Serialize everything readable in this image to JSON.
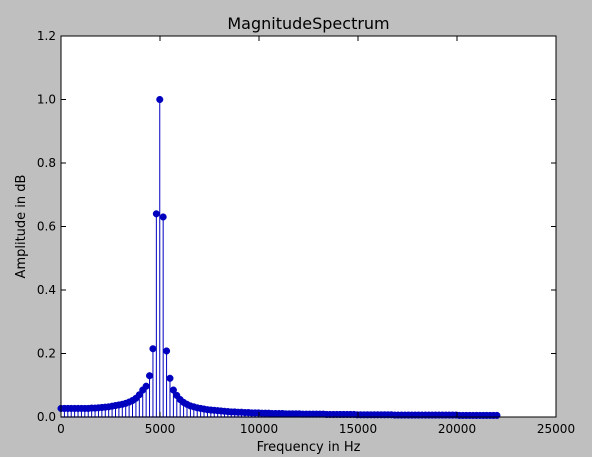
{
  "chart_data": {
    "type": "stem",
    "title": "MagnitudeSpectrum",
    "xlabel": "Frequency in Hz",
    "ylabel": "Amplitude in dB",
    "xlim": [
      0,
      25000
    ],
    "ylim": [
      0,
      1.2
    ],
    "xticks": [
      0,
      5000,
      10000,
      15000,
      20000,
      25000
    ],
    "yticks": [
      0.0,
      0.2,
      0.4,
      0.6,
      0.8,
      1.0,
      1.2
    ],
    "xtick_labels": [
      "0",
      "5000",
      "10000",
      "15000",
      "20000",
      "25000"
    ],
    "ytick_labels": [
      "0.0",
      "0.2",
      "0.4",
      "0.6",
      "0.8",
      "1.0",
      "1.2"
    ],
    "grid": false,
    "series": [
      {
        "color": "#0000bf",
        "step_hz": 172,
        "x_start": 0,
        "values": [
          0.027,
          0.027,
          0.027,
          0.027,
          0.027,
          0.027,
          0.027,
          0.027,
          0.027,
          0.028,
          0.028,
          0.029,
          0.03,
          0.031,
          0.032,
          0.034,
          0.036,
          0.038,
          0.04,
          0.043,
          0.047,
          0.052,
          0.059,
          0.07,
          0.085,
          0.097,
          0.13,
          0.215,
          0.64,
          1.0,
          0.63,
          0.208,
          0.122,
          0.085,
          0.068,
          0.055,
          0.046,
          0.04,
          0.035,
          0.032,
          0.029,
          0.027,
          0.025,
          0.023,
          0.022,
          0.021,
          0.02,
          0.019,
          0.018,
          0.017,
          0.016,
          0.016,
          0.015,
          0.015,
          0.014,
          0.014,
          0.013,
          0.013,
          0.013,
          0.012,
          0.012,
          0.012,
          0.011,
          0.011,
          0.011,
          0.011,
          0.01,
          0.01,
          0.01,
          0.01,
          0.01,
          0.009,
          0.009,
          0.009,
          0.009,
          0.009,
          0.009,
          0.009,
          0.008,
          0.008,
          0.008,
          0.008,
          0.008,
          0.008,
          0.008,
          0.008,
          0.008,
          0.007,
          0.007,
          0.007,
          0.007,
          0.007,
          0.007,
          0.007,
          0.007,
          0.007,
          0.007,
          0.007,
          0.006,
          0.006,
          0.006,
          0.006,
          0.006,
          0.006,
          0.006,
          0.006,
          0.006,
          0.006,
          0.006,
          0.006,
          0.006,
          0.006,
          0.006,
          0.006,
          0.006,
          0.006,
          0.006,
          0.005,
          0.005,
          0.005,
          0.005,
          0.005,
          0.005,
          0.005,
          0.005,
          0.005,
          0.005,
          0.005,
          0.005
        ]
      }
    ]
  }
}
